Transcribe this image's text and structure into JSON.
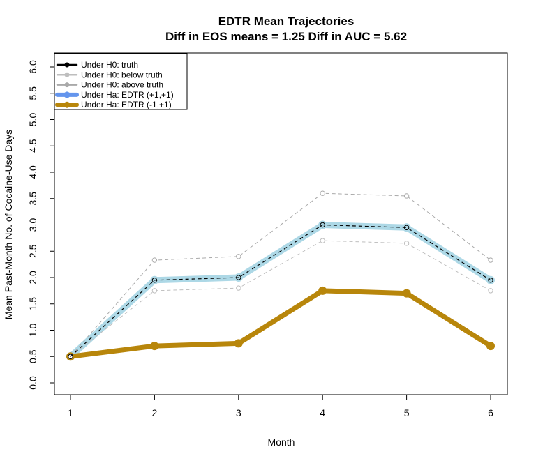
{
  "chart_data": {
    "type": "line",
    "title": "EDTR Mean Trajectories",
    "subtitle": "Diff in EOS means = 1.25   Diff in AUC = 5.62",
    "xlabel": "Month",
    "ylabel": "Mean Past-Month No. of Cocaine-Use Days",
    "x": [
      1,
      2,
      3,
      4,
      5,
      6
    ],
    "xticks": [
      "1",
      "2",
      "3",
      "4",
      "5",
      "6"
    ],
    "ylim": [
      0.0,
      6.0
    ],
    "yticks": [
      "0.0",
      "0.5",
      "1.0",
      "1.5",
      "2.0",
      "2.5",
      "3.0",
      "3.5",
      "4.0",
      "4.5",
      "5.0",
      "5.5",
      "6.0"
    ],
    "grid": false,
    "legend_position": "top-left",
    "series": [
      {
        "name": "Under Ha: EDTR (+1,+1)",
        "values": [
          0.5,
          1.95,
          2.0,
          3.0,
          2.95,
          1.95
        ],
        "color": "#add8e6",
        "legend_color": "#6495ed"
      },
      {
        "name": "Under Ha: EDTR (-1,+1)",
        "values": [
          0.5,
          0.7,
          0.75,
          1.75,
          1.7,
          0.7
        ],
        "color": "#b8860b"
      },
      {
        "name": "Under H0: below truth",
        "values": [
          0.5,
          1.75,
          1.8,
          2.7,
          2.65,
          1.75
        ],
        "color": "#bebebe"
      },
      {
        "name": "Under H0: above truth",
        "values": [
          0.5,
          2.33,
          2.4,
          3.6,
          3.55,
          2.33
        ],
        "color": "#a9a9a9"
      },
      {
        "name": "Under H0: truth",
        "values": [
          0.5,
          1.95,
          2.0,
          3.0,
          2.95,
          1.95
        ],
        "color": "#000000"
      }
    ],
    "legend": [
      {
        "label": "Under H0: truth",
        "color": "#000000",
        "width": 2.5
      },
      {
        "label": "Under H0: below truth",
        "color": "#bebebe",
        "width": 2.5
      },
      {
        "label": "Under H0: above truth",
        "color": "#a9a9a9",
        "width": 2.5
      },
      {
        "label": "Under Ha: EDTR (+1,+1)",
        "color": "#6495ed",
        "width": 6
      },
      {
        "label": "Under Ha: EDTR (-1,+1)",
        "color": "#b8860b",
        "width": 6
      }
    ]
  }
}
